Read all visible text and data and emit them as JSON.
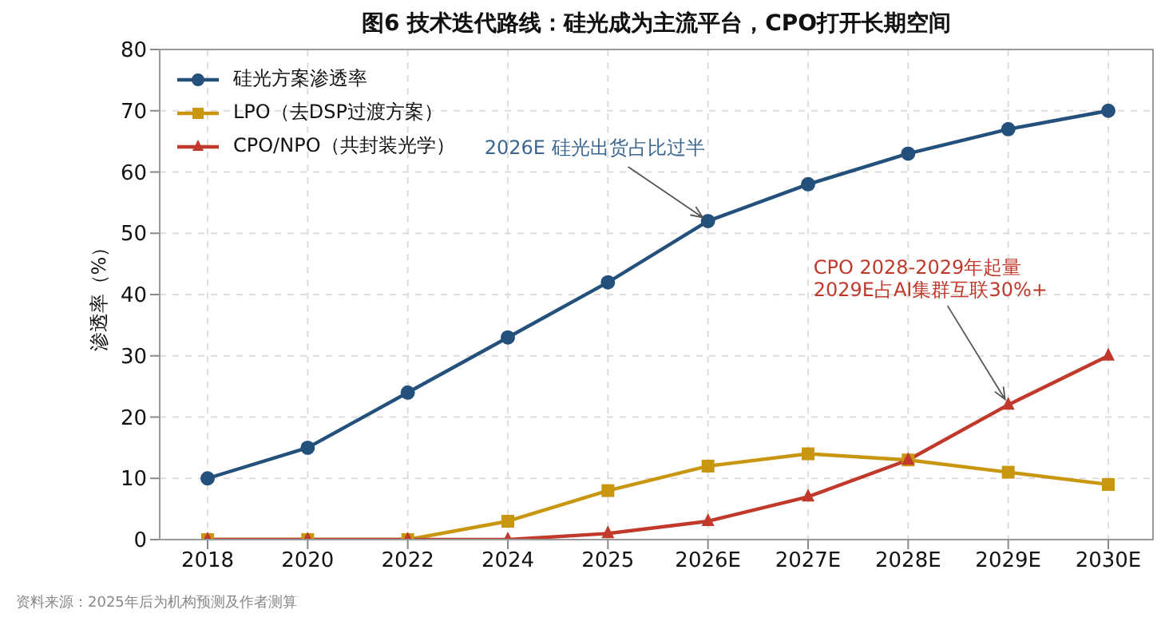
{
  "chart_data": {
    "type": "line",
    "title": "图6  技术迭代路线：硅光成为主流平台，CPO打开长期空间",
    "ylabel": "渗透率（%）",
    "categories": [
      "2018",
      "2020",
      "2022",
      "2024",
      "2025",
      "2026E",
      "2027E",
      "2028E",
      "2029E",
      "2030E"
    ],
    "series": [
      {
        "name": "硅光方案渗透率",
        "color": "#24507c",
        "marker": "circle",
        "values": [
          10,
          15,
          24,
          33,
          42,
          52,
          58,
          63,
          67,
          70
        ]
      },
      {
        "name": "LPO（去DSP过渡方案）",
        "color": "#c8960f",
        "marker": "square",
        "values": [
          0,
          0,
          0,
          3,
          8,
          12,
          14,
          13,
          11,
          9
        ]
      },
      {
        "name": "CPO/NPO（共封装光学）",
        "color": "#c0392b",
        "marker": "triangle",
        "values": [
          0,
          0,
          0,
          0,
          1,
          3,
          7,
          13,
          22,
          30
        ]
      }
    ],
    "ylim": [
      0,
      80
    ],
    "yticks": [
      0,
      10,
      20,
      30,
      40,
      50,
      60,
      70,
      80
    ],
    "grid": true,
    "legend": "top left",
    "line_style": "solid",
    "annotations": [
      {
        "text": "2026E 硅光出货占比过半",
        "x": "2026E",
        "y": 52
      },
      {
        "text": "CPO 2028-2029年起量\n2029E占AI集群互联30%+",
        "x": "2029E",
        "y": 22
      },
      "资料来源：2025年后为机构预测及作者测算"
    ]
  }
}
